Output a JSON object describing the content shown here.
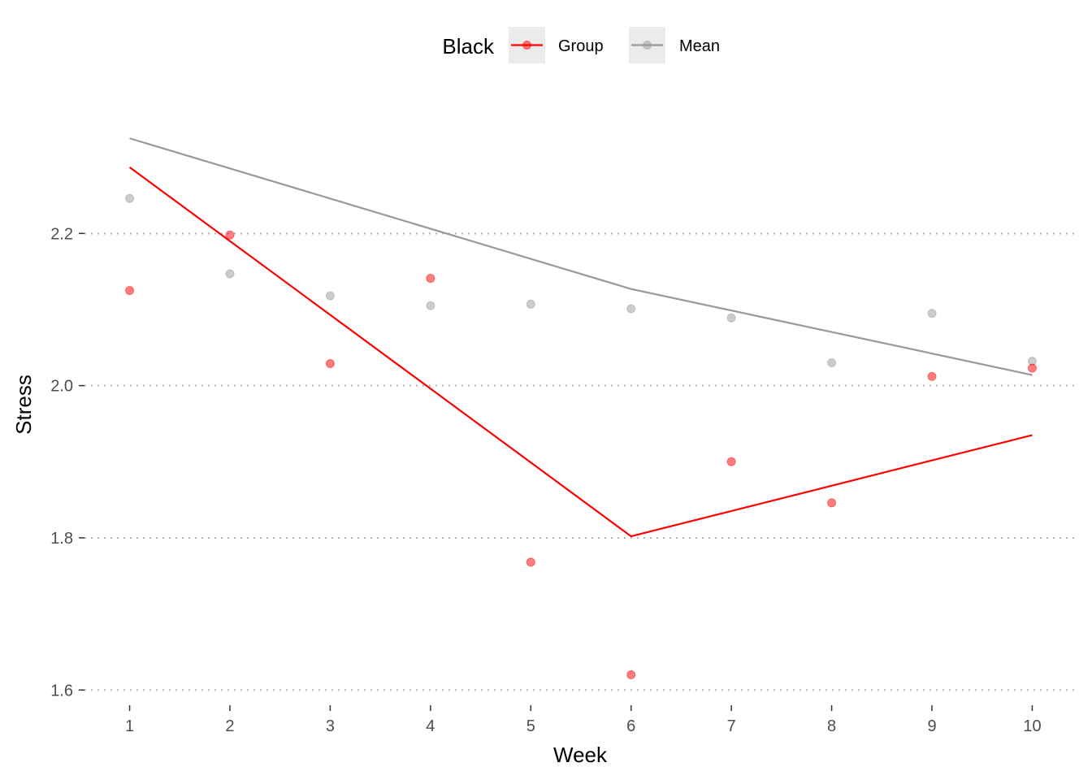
{
  "chart_data": {
    "type": "line",
    "xlabel": "Week",
    "ylabel": "Stress",
    "x_ticks": [
      1,
      2,
      3,
      4,
      5,
      6,
      7,
      8,
      9,
      10
    ],
    "y_ticks": [
      1.6,
      1.8,
      2.0,
      2.2
    ],
    "y_tick_labels": [
      "1.6",
      "1.8",
      "2.0",
      "2.2"
    ],
    "xlim": [
      0.55,
      10.45
    ],
    "ylim": [
      1.58,
      2.4
    ],
    "grid": "horizontal dotted",
    "legend": {
      "title": "Black",
      "position": "top",
      "entries": [
        "Group",
        "Mean"
      ]
    },
    "series": [
      {
        "name": "Group",
        "color": "#ff0000",
        "points": {
          "x": [
            1,
            2,
            3,
            4,
            5,
            6,
            7,
            8,
            9,
            10
          ],
          "y": [
            2.125,
            2.198,
            2.029,
            2.141,
            1.768,
            1.62,
            1.9,
            1.846,
            2.012,
            2.023
          ]
        },
        "trend": {
          "x": [
            1,
            6,
            10
          ],
          "y": [
            2.287,
            1.802,
            1.935
          ]
        }
      },
      {
        "name": "Mean",
        "color": "#999999",
        "points": {
          "x": [
            1,
            2,
            3,
            4,
            5,
            6,
            7,
            8,
            9,
            10
          ],
          "y": [
            2.246,
            2.147,
            2.118,
            2.105,
            2.107,
            2.101,
            2.089,
            2.03,
            2.095,
            2.032
          ]
        },
        "trend": {
          "x": [
            1,
            6,
            10
          ],
          "y": [
            2.325,
            2.127,
            2.014
          ]
        }
      }
    ]
  }
}
